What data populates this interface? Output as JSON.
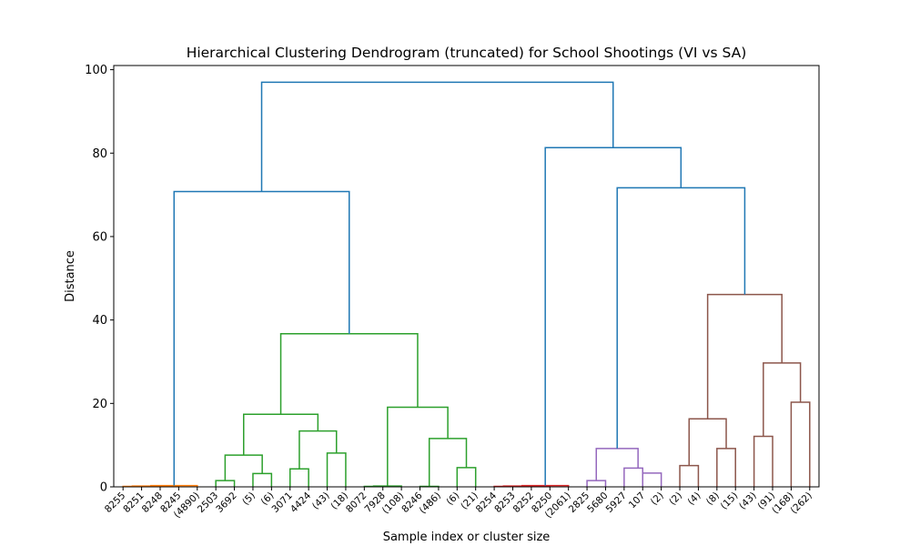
{
  "chart_data": {
    "type": "dendrogram",
    "title": "Hierarchical Clustering Dendrogram (truncated) for School Shootings (VI vs SA)",
    "xlabel": "Sample index or cluster size",
    "ylabel": "Distance",
    "ylim": [
      0,
      101
    ],
    "yticks": [
      0,
      20,
      40,
      60,
      80,
      100
    ],
    "grid": false,
    "leaves": [
      "8255",
      "8251",
      "8248",
      "8245",
      "(4890)",
      "2503",
      "3692",
      "(5)",
      "(6)",
      "3071",
      "4424",
      "(43)",
      "(18)",
      "8072",
      "7928",
      "(108)",
      "8246",
      "(486)",
      "(6)",
      "(21)",
      "8254",
      "8253",
      "8252",
      "8250",
      "(2061)",
      "2825",
      "5680",
      "5927",
      "107",
      "(2)",
      "(2)",
      "(4)",
      "(8)",
      "(15)",
      "(43)",
      "(91)",
      "(168)",
      "(262)"
    ],
    "colors": {
      "above_threshold": "#1f77b4",
      "c1": "#ff7f0e",
      "c2": "#2ca02c",
      "c3": "#d62728",
      "c4": "#9467bd",
      "c5": "#8c564b"
    },
    "links": [
      {
        "icoord": [
          5,
          5,
          15,
          15
        ],
        "dcoord": [
          0,
          0.1,
          0.1,
          0
        ],
        "color": "c1"
      },
      {
        "icoord": [
          25,
          25,
          35,
          35
        ],
        "dcoord": [
          0,
          0.1,
          0.1,
          0
        ],
        "color": "c1"
      },
      {
        "icoord": [
          10,
          10,
          30,
          30
        ],
        "dcoord": [
          0.1,
          0.2,
          0.2,
          0.1
        ],
        "color": "c1"
      },
      {
        "icoord": [
          20,
          20,
          45,
          45
        ],
        "dcoord": [
          0.2,
          0.3,
          0.3,
          0
        ],
        "color": "c1"
      },
      {
        "icoord": [
          55,
          55,
          65,
          65
        ],
        "dcoord": [
          0,
          1.5,
          1.5,
          0
        ],
        "color": "c2"
      },
      {
        "icoord": [
          75,
          75,
          85,
          85
        ],
        "dcoord": [
          0,
          3.2,
          3.2,
          0
        ],
        "color": "c2"
      },
      {
        "icoord": [
          60,
          60,
          80,
          80
        ],
        "dcoord": [
          1.5,
          7.6,
          7.6,
          3.2
        ],
        "color": "c2"
      },
      {
        "icoord": [
          95,
          95,
          105,
          105
        ],
        "dcoord": [
          0,
          4.3,
          4.3,
          0
        ],
        "color": "c2"
      },
      {
        "icoord": [
          115,
          115,
          125,
          125
        ],
        "dcoord": [
          0,
          8.1,
          8.1,
          0
        ],
        "color": "c2"
      },
      {
        "icoord": [
          100,
          100,
          120,
          120
        ],
        "dcoord": [
          4.3,
          13.4,
          13.4,
          8.1
        ],
        "color": "c2"
      },
      {
        "icoord": [
          70,
          70,
          110,
          110
        ],
        "dcoord": [
          7.6,
          17.4,
          17.4,
          13.4
        ],
        "color": "c2"
      },
      {
        "icoord": [
          135,
          135,
          145,
          145
        ],
        "dcoord": [
          0,
          0.1,
          0.1,
          0
        ],
        "color": "c2"
      },
      {
        "icoord": [
          140,
          140,
          155,
          155
        ],
        "dcoord": [
          0.1,
          0.2,
          0.2,
          0
        ],
        "color": "c2"
      },
      {
        "icoord": [
          165,
          165,
          175,
          175
        ],
        "dcoord": [
          0,
          0.1,
          0.1,
          0
        ],
        "color": "c2"
      },
      {
        "icoord": [
          185,
          185,
          195,
          195
        ],
        "dcoord": [
          0,
          4.6,
          4.6,
          0
        ],
        "color": "c2"
      },
      {
        "icoord": [
          170,
          170,
          190,
          190
        ],
        "dcoord": [
          0.1,
          11.6,
          11.6,
          4.6
        ],
        "color": "c2"
      },
      {
        "icoord": [
          147.5,
          147.5,
          180,
          180
        ],
        "dcoord": [
          0.2,
          19.1,
          19.1,
          11.6
        ],
        "color": "c2"
      },
      {
        "icoord": [
          90,
          90,
          163.75,
          163.75
        ],
        "dcoord": [
          17.4,
          36.7,
          36.7,
          19.1
        ],
        "color": "c2"
      },
      {
        "icoord": [
          32.5,
          32.5,
          126.875,
          126.875
        ],
        "dcoord": [
          0.3,
          70.8,
          70.8,
          36.7
        ],
        "color": "above_threshold"
      },
      {
        "icoord": [
          205,
          205,
          215,
          215
        ],
        "dcoord": [
          0,
          0.1,
          0.1,
          0
        ],
        "color": "c3"
      },
      {
        "icoord": [
          225,
          225,
          235,
          235
        ],
        "dcoord": [
          0,
          0.1,
          0.1,
          0
        ],
        "color": "c3"
      },
      {
        "icoord": [
          210,
          210,
          230,
          230
        ],
        "dcoord": [
          0.1,
          0.2,
          0.2,
          0.1
        ],
        "color": "c3"
      },
      {
        "icoord": [
          220,
          220,
          245,
          245
        ],
        "dcoord": [
          0.2,
          0.3,
          0.3,
          0
        ],
        "color": "c3"
      },
      {
        "icoord": [
          255,
          255,
          265,
          265
        ],
        "dcoord": [
          0,
          1.5,
          1.5,
          0
        ],
        "color": "c4"
      },
      {
        "icoord": [
          275,
          275,
          285,
          285
        ],
        "dcoord": [
          0,
          4.5,
          4.5,
          0
        ],
        "color": "c4"
      },
      {
        "icoord": [
          285,
          285,
          295,
          295
        ],
        "dcoord": [
          0,
          3.3,
          3.3,
          0
        ],
        "color": "c4"
      },
      {
        "icoord": [
          260,
          260,
          282.5,
          282.5
        ],
        "dcoord": [
          1.5,
          9.2,
          9.2,
          4.5
        ],
        "color": "c4"
      },
      {
        "icoord": [
          305,
          305,
          315,
          315
        ],
        "dcoord": [
          0,
          5.1,
          5.1,
          0
        ],
        "color": "c5"
      },
      {
        "icoord": [
          325,
          325,
          335,
          335
        ],
        "dcoord": [
          0,
          9.2,
          9.2,
          0
        ],
        "color": "c5"
      },
      {
        "icoord": [
          310,
          310,
          330,
          330
        ],
        "dcoord": [
          5.1,
          16.3,
          16.3,
          9.2
        ],
        "color": "c5"
      },
      {
        "icoord": [
          345,
          345,
          355,
          355
        ],
        "dcoord": [
          0,
          12.1,
          12.1,
          0
        ],
        "color": "c5"
      },
      {
        "icoord": [
          365,
          365,
          375,
          375
        ],
        "dcoord": [
          0,
          20.3,
          20.3,
          0
        ],
        "color": "c5"
      },
      {
        "icoord": [
          350,
          350,
          370,
          370
        ],
        "dcoord": [
          12.1,
          29.7,
          29.7,
          20.3
        ],
        "color": "c5"
      },
      {
        "icoord": [
          320,
          320,
          360,
          360
        ],
        "dcoord": [
          16.3,
          46.1,
          46.1,
          29.7
        ],
        "color": "c5"
      },
      {
        "icoord": [
          271.25,
          271.25,
          340,
          340
        ],
        "dcoord": [
          9.2,
          71.7,
          71.7,
          46.1
        ],
        "color": "above_threshold"
      },
      {
        "icoord": [
          232.5,
          232.5,
          305.625,
          305.625
        ],
        "dcoord": [
          0.3,
          81.3,
          81.3,
          71.7
        ],
        "color": "above_threshold"
      },
      {
        "icoord": [
          79.6875,
          79.6875,
          269.0625,
          269.0625
        ],
        "dcoord": [
          70.8,
          97,
          97,
          81.3
        ],
        "color": "above_threshold"
      }
    ]
  }
}
